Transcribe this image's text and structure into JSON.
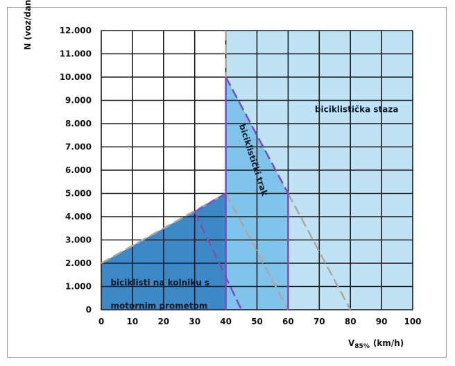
{
  "chart_data": {
    "type": "area",
    "title": "",
    "xlabel_main": "V",
    "xlabel_sub": "85%",
    "xlabel_unit": "(km/h)",
    "ylabel": "N (voz/dan)",
    "xlim": [
      0,
      100
    ],
    "ylim": [
      0,
      12000
    ],
    "x_ticks": [
      "0",
      "10",
      "20",
      "30",
      "40",
      "50",
      "60",
      "70",
      "80",
      "90",
      "100"
    ],
    "y_ticks": [
      "0",
      "1.000",
      "2.000",
      "3.000",
      "4.000",
      "5.000",
      "6.000",
      "7.000",
      "8.000",
      "9.000",
      "10.000",
      "11.000",
      "12.000"
    ],
    "grid": true,
    "regions": [
      {
        "name": "biciklisti na kolniku s motornim prometom",
        "label_lines": [
          "biciklisti na kolniku s",
          "motornim prometom"
        ],
        "color": "#3d88c6",
        "points": [
          [
            0,
            2000
          ],
          [
            40,
            5000
          ],
          [
            40,
            0
          ],
          [
            0,
            0
          ]
        ]
      },
      {
        "name": "biciklistički trak",
        "label_lines": [
          "biciklistički trak"
        ],
        "color": "#7fc4ea",
        "points": [
          [
            40,
            0
          ],
          [
            40,
            10000
          ],
          [
            60,
            5000
          ],
          [
            60,
            0
          ]
        ]
      },
      {
        "name": "biciklistička staza",
        "label_lines": [
          "biciklistička staza"
        ],
        "color": "#bfe3f5",
        "points": [
          [
            40,
            12000
          ],
          [
            100,
            12000
          ],
          [
            100,
            0
          ],
          [
            40,
            0
          ]
        ]
      }
    ],
    "boundary_lines": [
      {
        "style": "dashed",
        "color": "#b0a89c",
        "points": [
          [
            0,
            2000
          ],
          [
            40,
            5000
          ]
        ]
      },
      {
        "style": "dashed",
        "color": "#b0a89c",
        "points": [
          [
            40,
            5000
          ],
          [
            60,
            0
          ]
        ]
      },
      {
        "style": "dashed",
        "color": "#b0a89c",
        "points": [
          [
            60,
            5000
          ],
          [
            80,
            0
          ]
        ]
      },
      {
        "style": "dashed",
        "color": "#b0a89c",
        "points": [
          [
            40,
            12000
          ],
          [
            40,
            10000
          ]
        ]
      },
      {
        "style": "solid",
        "color": "#7a4fc0",
        "points": [
          [
            40,
            0
          ],
          [
            40,
            5000
          ]
        ]
      },
      {
        "style": "dashed",
        "color": "#7a4fc0",
        "points": [
          [
            30,
            4200
          ],
          [
            40,
            5000
          ]
        ]
      },
      {
        "style": "dashed",
        "color": "#7a4fc0",
        "points": [
          [
            30,
            4200
          ],
          [
            45,
            0
          ]
        ]
      },
      {
        "style": "solid",
        "color": "#7a4fc0",
        "points": [
          [
            40,
            5000
          ],
          [
            40,
            10000
          ]
        ]
      },
      {
        "style": "dashed",
        "color": "#7a4fc0",
        "points": [
          [
            40,
            10000
          ],
          [
            60,
            5000
          ]
        ]
      },
      {
        "style": "solid",
        "color": "#7a4fc0",
        "points": [
          [
            60,
            5000
          ],
          [
            60,
            0
          ]
        ]
      }
    ]
  }
}
